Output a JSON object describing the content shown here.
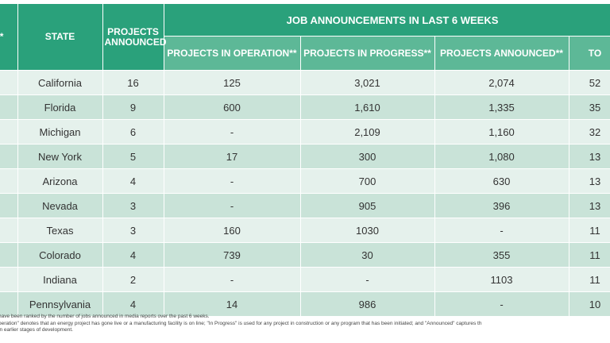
{
  "headers": {
    "rank": "K*",
    "state": "STATE",
    "projects_announced": "PROJECTS ANNOUNCED",
    "job_announcements": "JOB ANNOUNCEMENTS IN LAST 6 WEEKS",
    "operation": "PROJECTS IN OPERATION**",
    "progress": "PROJECTS IN PROGRESS**",
    "announced": "PROJECTS ANNOUNCED**",
    "total": "TO"
  },
  "rows": [
    {
      "rank": "",
      "state": "California",
      "projects": "16",
      "operation": "125",
      "progress": "3,021",
      "announced": "2,074",
      "total": "52"
    },
    {
      "rank": "",
      "state": "Florida",
      "projects": "9",
      "operation": "600",
      "progress": "1,610",
      "announced": "1,335",
      "total": "35"
    },
    {
      "rank": "",
      "state": "Michigan",
      "projects": "6",
      "operation": "-",
      "progress": "2,109",
      "announced": "1,160",
      "total": "32"
    },
    {
      "rank": "",
      "state": "New York",
      "projects": "5",
      "operation": "17",
      "progress": "300",
      "announced": "1,080",
      "total": "13"
    },
    {
      "rank": "",
      "state": "Arizona",
      "projects": "4",
      "operation": "-",
      "progress": "700",
      "announced": "630",
      "total": "13"
    },
    {
      "rank": "",
      "state": "Nevada",
      "projects": "3",
      "operation": "-",
      "progress": "905",
      "announced": "396",
      "total": "13"
    },
    {
      "rank": "",
      "state": "Texas",
      "projects": "3",
      "operation": "160",
      "progress": "1030",
      "announced": "-",
      "total": "11"
    },
    {
      "rank": "",
      "state": "Colorado",
      "projects": "4",
      "operation": "739",
      "progress": "30",
      "announced": "355",
      "total": "11"
    },
    {
      "rank": "",
      "state": "Indiana",
      "projects": "2",
      "operation": "-",
      "progress": "-",
      "announced": "1103",
      "total": "11"
    },
    {
      "rank": "",
      "state": "Pennsylvania",
      "projects": "4",
      "operation": "14",
      "progress": "986",
      "announced": "-",
      "total": "10"
    }
  ],
  "footnotes": [
    "have been ranked by the number of jobs announced in media reports over the past 6 weeks.",
    "peration\" denotes that an energy project has gone live or a manufacturing facility is on line; \"In Progress\" is used for any project in construction or any program that has been initiated; and \"Announced\" captures th",
    "in earlier stages of development."
  ]
}
